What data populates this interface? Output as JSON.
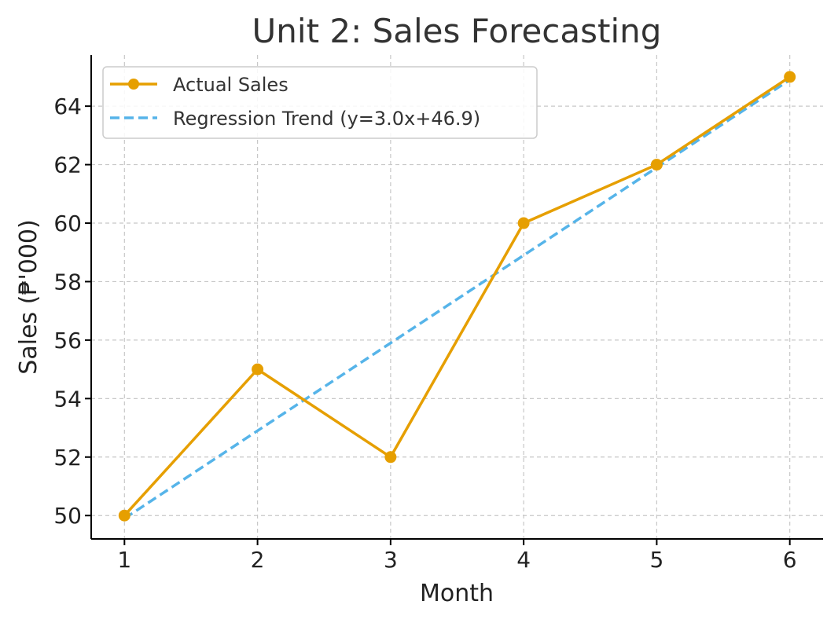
{
  "chart_data": {
    "type": "line",
    "title": "Unit 2: Sales Forecasting",
    "xlabel": "Month",
    "ylabel": "Sales (₱'000)",
    "x": [
      1,
      2,
      3,
      4,
      5,
      6
    ],
    "xlim": [
      0.75,
      6.25
    ],
    "ylim": [
      49.2,
      65.75
    ],
    "xticks": [
      1,
      2,
      3,
      4,
      5,
      6
    ],
    "yticks": [
      50,
      52,
      54,
      56,
      58,
      60,
      62,
      64
    ],
    "grid": true,
    "legend_position": "top-left",
    "series": [
      {
        "name": "Actual Sales",
        "values": [
          50,
          55,
          52,
          60,
          62,
          65
        ],
        "color": "#E69F00",
        "style": "solid",
        "marker": "circle"
      },
      {
        "name": "Regression Trend (y=3.0x+46.9)",
        "values": [
          49.9,
          52.9,
          55.9,
          58.9,
          61.9,
          64.9
        ],
        "color": "#56B4E9",
        "style": "dashed",
        "marker": "none"
      }
    ]
  }
}
